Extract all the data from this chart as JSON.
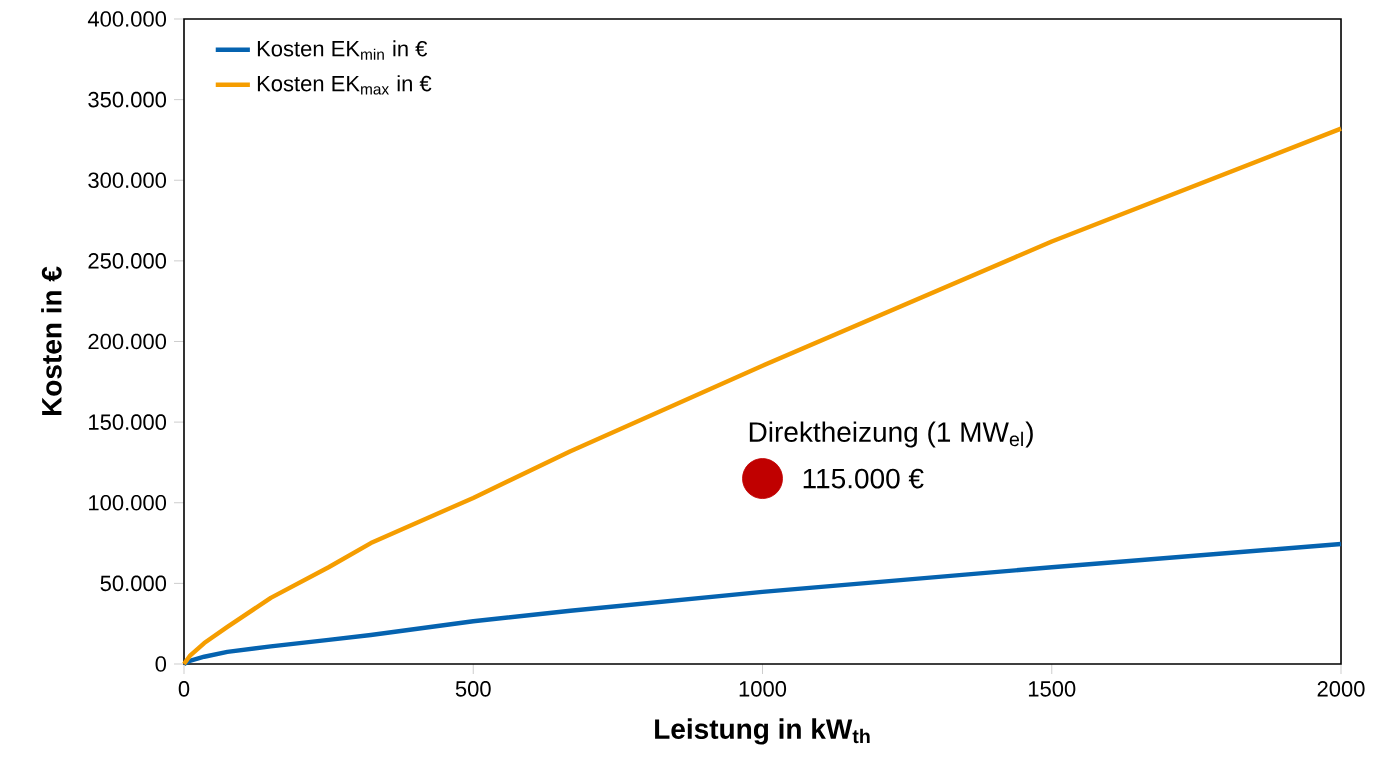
{
  "chart_data": {
    "type": "line",
    "xlabel": "Leistung in kW$_{th}$",
    "ylabel": "Kosten in €",
    "xlim": [
      0,
      2000
    ],
    "xticks": [
      0,
      500,
      1000,
      1500,
      2000
    ],
    "ylim": [
      0,
      400000
    ],
    "yticks": [
      {
        "value": 0,
        "label": "0"
      },
      {
        "value": 50000,
        "label": "50.000"
      },
      {
        "value": 100000,
        "label": "100.000"
      },
      {
        "value": 150000,
        "label": "150.000"
      },
      {
        "value": 200000,
        "label": "200.000"
      },
      {
        "value": 250000,
        "label": "250.000"
      },
      {
        "value": 300000,
        "label": "300.000"
      },
      {
        "value": 350000,
        "label": "350.000"
      },
      {
        "value": 400000,
        "label": "400.000"
      }
    ],
    "x": [
      0,
      10,
      35,
      75,
      150,
      250,
      323,
      500,
      668,
      1000,
      1500,
      2000
    ],
    "series": [
      {
        "name": "Kosten EK$_{min}$ in €",
        "color": "#0563b0",
        "values": [
          0,
          2000,
          4500,
          7500,
          10900,
          15000,
          18000,
          26500,
          33000,
          44700,
          60000,
          74400
        ]
      },
      {
        "name": "Kosten EK$_{max}$ in €",
        "color": "#f59d00",
        "values": [
          0,
          5000,
          13000,
          23000,
          41000,
          60000,
          75000,
          103000,
          132000,
          185000,
          262000,
          332000
        ]
      },
      {
        "type": "scatter",
        "color": "#c00000",
        "x": [
          1000
        ],
        "values": [
          115000
        ],
        "value_labels": [
          "115.000 €"
        ]
      }
    ],
    "annotations": [
      {
        "text": "Direktheizung (1 MW$_{el}$)",
        "x": 1000,
        "y": 115000
      }
    ],
    "legend": "top left",
    "grid": false,
    "marker": "none",
    "line_style": "solid"
  }
}
